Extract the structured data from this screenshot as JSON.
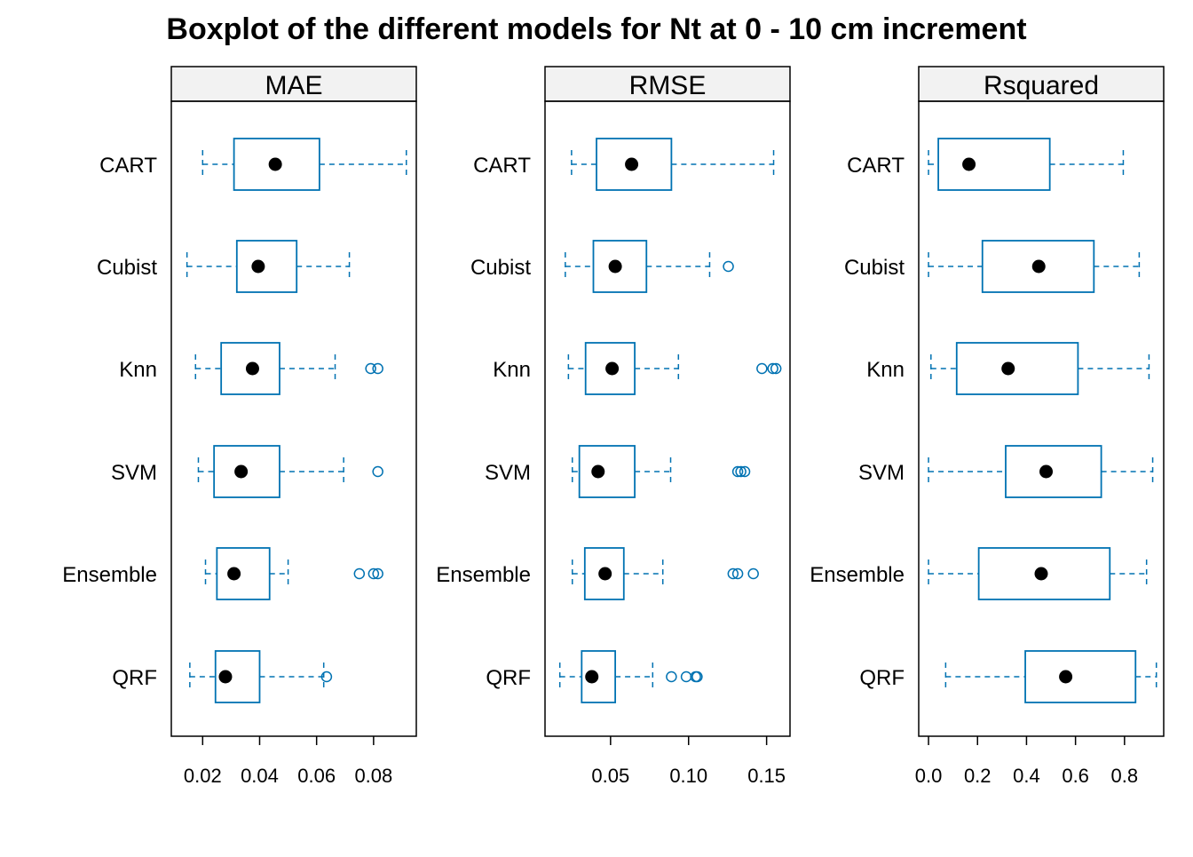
{
  "chart_data": {
    "type": "boxplot",
    "title": "Boxplot of the different models for Nt at 0 - 10 cm increment",
    "orientation": "horizontal",
    "colors": {
      "box": "#0072B2",
      "median": "#000000",
      "strip_bg": "#F2F2F2",
      "frame": "#000000"
    },
    "categories": [
      "CART",
      "Cubist",
      "Knn",
      "SVM",
      "Ensemble",
      "QRF"
    ],
    "panels": [
      {
        "name": "MAE",
        "xlim": [
          0.009,
          0.095
        ],
        "ticks": [
          0.02,
          0.04,
          0.06,
          0.08
        ],
        "tick_labels": [
          "0.02",
          "0.04",
          "0.06",
          "0.08"
        ],
        "boxes": [
          {
            "category": "CART",
            "whisker_low": 0.02,
            "q1": 0.031,
            "median": 0.0455,
            "q3": 0.061,
            "whisker_high": 0.0915,
            "outliers": []
          },
          {
            "category": "Cubist",
            "whisker_low": 0.0145,
            "q1": 0.032,
            "median": 0.0395,
            "q3": 0.053,
            "whisker_high": 0.0715,
            "outliers": []
          },
          {
            "category": "Knn",
            "whisker_low": 0.0175,
            "q1": 0.0265,
            "median": 0.0375,
            "q3": 0.047,
            "whisker_high": 0.0665,
            "outliers": [
              0.079,
              0.0815
            ]
          },
          {
            "category": "SVM",
            "whisker_low": 0.0185,
            "q1": 0.024,
            "median": 0.0335,
            "q3": 0.047,
            "whisker_high": 0.0695,
            "outliers": [
              0.0815
            ]
          },
          {
            "category": "Ensemble",
            "whisker_low": 0.021,
            "q1": 0.025,
            "median": 0.031,
            "q3": 0.0435,
            "whisker_high": 0.05,
            "outliers": [
              0.075,
              0.08,
              0.0815
            ]
          },
          {
            "category": "QRF",
            "whisker_low": 0.0155,
            "q1": 0.0245,
            "median": 0.028,
            "q3": 0.04,
            "whisker_high": 0.0625,
            "outliers": [
              0.0635
            ]
          }
        ]
      },
      {
        "name": "RMSE",
        "xlim": [
          0.008,
          0.165
        ],
        "ticks": [
          0.05,
          0.1,
          0.15
        ],
        "tick_labels": [
          "0.05",
          "0.10",
          "0.15"
        ],
        "boxes": [
          {
            "category": "CART",
            "whisker_low": 0.025,
            "q1": 0.041,
            "median": 0.0635,
            "q3": 0.089,
            "whisker_high": 0.1545,
            "outliers": []
          },
          {
            "category": "Cubist",
            "whisker_low": 0.021,
            "q1": 0.039,
            "median": 0.053,
            "q3": 0.073,
            "whisker_high": 0.1135,
            "outliers": [
              0.1255
            ]
          },
          {
            "category": "Knn",
            "whisker_low": 0.023,
            "q1": 0.034,
            "median": 0.051,
            "q3": 0.0655,
            "whisker_high": 0.0935,
            "outliers": [
              0.147,
              0.154,
              0.156
            ]
          },
          {
            "category": "SVM",
            "whisker_low": 0.0255,
            "q1": 0.03,
            "median": 0.042,
            "q3": 0.0655,
            "whisker_high": 0.0885,
            "outliers": [
              0.1315,
              0.1335,
              0.136
            ]
          },
          {
            "category": "Ensemble",
            "whisker_low": 0.0255,
            "q1": 0.0335,
            "median": 0.0465,
            "q3": 0.0585,
            "whisker_high": 0.0835,
            "outliers": [
              0.1285,
              0.1315,
              0.1415
            ]
          },
          {
            "category": "QRF",
            "whisker_low": 0.0175,
            "q1": 0.0315,
            "median": 0.038,
            "q3": 0.053,
            "whisker_high": 0.077,
            "outliers": [
              0.089,
              0.0985,
              0.1045,
              0.1055
            ]
          }
        ]
      },
      {
        "name": "Rsquared",
        "xlim": [
          -0.04,
          0.96
        ],
        "ticks": [
          0.0,
          0.2,
          0.4,
          0.6,
          0.8
        ],
        "tick_labels": [
          "0.0",
          "0.2",
          "0.4",
          "0.6",
          "0.8"
        ],
        "boxes": [
          {
            "category": "CART",
            "whisker_low": 0.0,
            "q1": 0.04,
            "median": 0.165,
            "q3": 0.495,
            "whisker_high": 0.795,
            "outliers": []
          },
          {
            "category": "Cubist",
            "whisker_low": 0.0,
            "q1": 0.22,
            "median": 0.45,
            "q3": 0.675,
            "whisker_high": 0.86,
            "outliers": []
          },
          {
            "category": "Knn",
            "whisker_low": 0.01,
            "q1": 0.115,
            "median": 0.325,
            "q3": 0.61,
            "whisker_high": 0.9,
            "outliers": []
          },
          {
            "category": "SVM",
            "whisker_low": 0.0,
            "q1": 0.315,
            "median": 0.48,
            "q3": 0.705,
            "whisker_high": 0.915,
            "outliers": []
          },
          {
            "category": "Ensemble",
            "whisker_low": 0.0,
            "q1": 0.205,
            "median": 0.46,
            "q3": 0.74,
            "whisker_high": 0.89,
            "outliers": []
          },
          {
            "category": "QRF",
            "whisker_low": 0.07,
            "q1": 0.395,
            "median": 0.56,
            "q3": 0.845,
            "whisker_high": 0.93,
            "outliers": []
          }
        ]
      }
    ]
  }
}
